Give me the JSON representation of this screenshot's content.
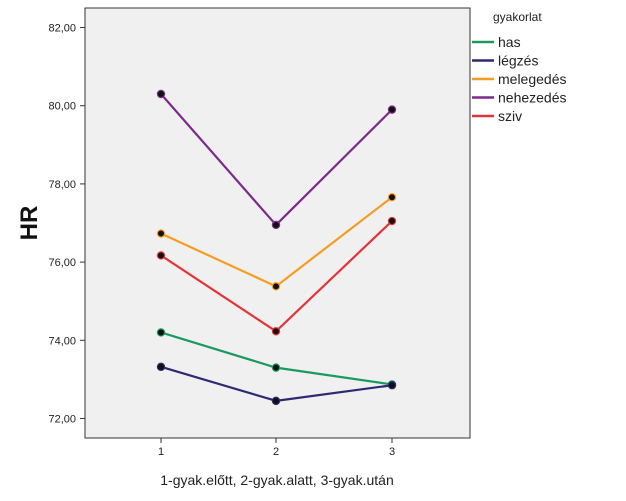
{
  "chart_data": {
    "type": "line",
    "x": [
      1,
      2,
      3
    ],
    "x_tick_labels": [
      "1",
      "2",
      "3"
    ],
    "xlabel": "1-gyak.előtt, 2-gyak.alatt, 3-gyak.után",
    "ylabel": "HR",
    "ylim": [
      71.5,
      82.5
    ],
    "y_ticks": [
      72,
      74,
      76,
      78,
      80,
      82
    ],
    "y_tick_labels": [
      "72,00",
      "74,00",
      "76,00",
      "78,00",
      "80,00",
      "82,00"
    ],
    "grid": false,
    "legend_title": "gyakorlat",
    "legend_position": "top-right",
    "series": [
      {
        "name": "has",
        "color": "#1a9a5e",
        "values": [
          74.2,
          73.3,
          72.87
        ]
      },
      {
        "name": "légzés",
        "color": "#2d2a73",
        "values": [
          73.32,
          72.45,
          72.85
        ]
      },
      {
        "name": "melegedés",
        "color": "#f59d21",
        "values": [
          76.73,
          75.38,
          77.66
        ]
      },
      {
        "name": "nehezedés",
        "color": "#7d2b8b",
        "values": [
          80.3,
          76.95,
          79.9
        ]
      },
      {
        "name": "sziv",
        "color": "#e2353a",
        "values": [
          76.17,
          74.23,
          77.05
        ]
      }
    ]
  }
}
